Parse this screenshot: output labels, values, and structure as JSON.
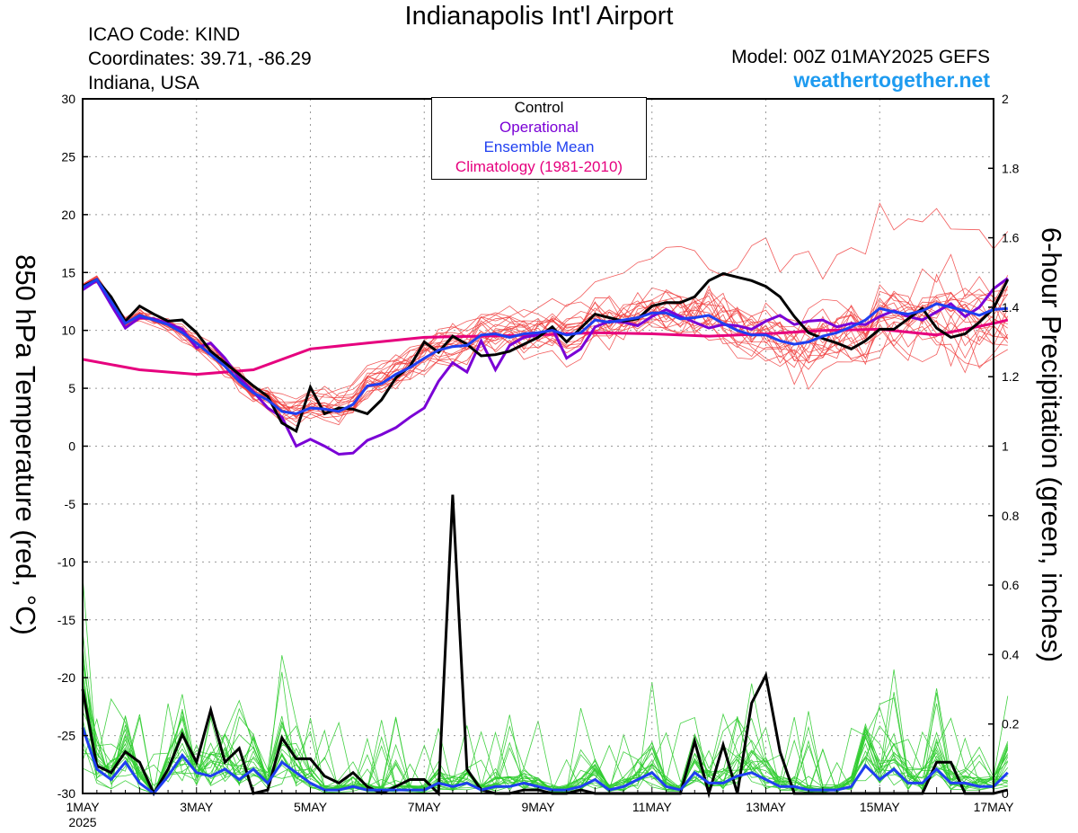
{
  "header": {
    "title": "Indianapolis Int'l Airport",
    "icao": "ICAO Code: KIND",
    "coords": "Coordinates: 39.71, -86.29",
    "region": "Indiana, USA",
    "model": "Model: 00Z 01MAY2025 GEFS",
    "site": "weathertogether.net"
  },
  "colors": {
    "control": "#000000",
    "operational": "#7a00d6",
    "mean": "#1f3ff0",
    "climatology": "#e6007e",
    "members_temp": "#f04040",
    "members_precip": "#2ecc2e",
    "site": "#1e9bf0"
  },
  "chart_data": {
    "type": "line",
    "ylabel_left": "850 hPa Temperature (red, °C)",
    "ylabel_right": "6-hour Precipitation (green, inches)",
    "ylim_left": [
      -30,
      30
    ],
    "ylim_right": [
      0,
      2
    ],
    "yticks_left": [
      -30,
      -25,
      -20,
      -15,
      -10,
      -5,
      0,
      5,
      10,
      15,
      20,
      25,
      30
    ],
    "yticks_right": [
      0,
      0.2,
      0.4,
      0.6,
      0.8,
      1,
      1.2,
      1.4,
      1.6,
      1.8,
      2
    ],
    "xlim_days": [
      0,
      16
    ],
    "xticks": [
      {
        "day": 0,
        "label": "1MAY",
        "sub": "2025"
      },
      {
        "day": 2,
        "label": "3MAY"
      },
      {
        "day": 4,
        "label": "5MAY"
      },
      {
        "day": 6,
        "label": "7MAY"
      },
      {
        "day": 8,
        "label": "9MAY"
      },
      {
        "day": 10,
        "label": "11MAY"
      },
      {
        "day": 12,
        "label": "13MAY"
      },
      {
        "day": 14,
        "label": "15MAY"
      },
      {
        "day": 16,
        "label": "17MAY"
      }
    ],
    "grid": true,
    "legend_position": "top-center",
    "legend": [
      {
        "name": "Control",
        "color": "#000000"
      },
      {
        "name": "Operational",
        "color": "#7a00d6"
      },
      {
        "name": "Ensemble Mean",
        "color": "#1f3ff0"
      },
      {
        "name": "Climatology (1981-2010)",
        "color": "#e6007e"
      }
    ],
    "temperature": {
      "control": [
        [
          0,
          13.8
        ],
        [
          0.25,
          14.4
        ],
        [
          0.5,
          12.9
        ],
        [
          0.75,
          10.8
        ],
        [
          1,
          12.1
        ],
        [
          1.25,
          11.4
        ],
        [
          1.5,
          10.8
        ],
        [
          1.75,
          10.9
        ],
        [
          2,
          9.8
        ],
        [
          2.25,
          8.2
        ],
        [
          2.5,
          7.2
        ],
        [
          2.75,
          6.2
        ],
        [
          3,
          5.2
        ],
        [
          3.25,
          4.3
        ],
        [
          3.5,
          2.0
        ],
        [
          3.75,
          1.3
        ],
        [
          4,
          5.1
        ],
        [
          4.25,
          2.8
        ],
        [
          4.5,
          3.3
        ],
        [
          4.75,
          3.2
        ],
        [
          5,
          2.8
        ],
        [
          5.25,
          4.0
        ],
        [
          5.5,
          5.9
        ],
        [
          5.75,
          6.9
        ],
        [
          6,
          9.0
        ],
        [
          6.25,
          8.1
        ],
        [
          6.5,
          9.5
        ],
        [
          6.75,
          8.8
        ],
        [
          7,
          7.8
        ],
        [
          7.25,
          7.9
        ],
        [
          7.5,
          8.2
        ],
        [
          7.75,
          8.8
        ],
        [
          8,
          9.4
        ],
        [
          8.25,
          10.3
        ],
        [
          8.5,
          9.0
        ],
        [
          8.75,
          10.2
        ],
        [
          9,
          11.4
        ],
        [
          9.25,
          11.1
        ],
        [
          9.5,
          10.8
        ],
        [
          9.75,
          11.0
        ],
        [
          10,
          12.1
        ],
        [
          10.25,
          12.4
        ],
        [
          10.5,
          12.4
        ],
        [
          10.75,
          12.9
        ],
        [
          11,
          14.3
        ],
        [
          11.25,
          14.9
        ],
        [
          11.5,
          14.6
        ],
        [
          11.75,
          14.3
        ],
        [
          12,
          13.8
        ],
        [
          12.25,
          12.9
        ],
        [
          12.5,
          11.2
        ],
        [
          12.75,
          9.8
        ],
        [
          13,
          9.3
        ],
        [
          13.25,
          8.9
        ],
        [
          13.5,
          8.4
        ],
        [
          13.75,
          9.1
        ],
        [
          14,
          10.1
        ],
        [
          14.25,
          10.1
        ],
        [
          14.5,
          11.0
        ],
        [
          14.75,
          11.9
        ],
        [
          15,
          10.2
        ],
        [
          15.25,
          9.4
        ],
        [
          15.5,
          9.7
        ],
        [
          15.75,
          10.7
        ],
        [
          16,
          11.9
        ],
        [
          16.25,
          14.4
        ]
      ],
      "operational": [
        [
          0,
          13.5
        ],
        [
          0.25,
          14.3
        ],
        [
          0.5,
          12.2
        ],
        [
          0.75,
          10.2
        ],
        [
          1,
          11.1
        ],
        [
          1.25,
          11.0
        ],
        [
          1.5,
          10.6
        ],
        [
          1.75,
          10.1
        ],
        [
          2,
          8.5
        ],
        [
          2.25,
          8.9
        ],
        [
          2.5,
          7.6
        ],
        [
          2.75,
          5.9
        ],
        [
          3,
          4.7
        ],
        [
          3.25,
          3.3
        ],
        [
          3.5,
          2.5
        ],
        [
          3.75,
          0.0
        ],
        [
          4,
          0.6
        ],
        [
          4.25,
          0.0
        ],
        [
          4.5,
          -0.7
        ],
        [
          4.75,
          -0.6
        ],
        [
          5,
          0.5
        ],
        [
          5.25,
          1.0
        ],
        [
          5.5,
          1.6
        ],
        [
          5.75,
          2.5
        ],
        [
          6,
          3.3
        ],
        [
          6.25,
          5.6
        ],
        [
          6.5,
          7.2
        ],
        [
          6.75,
          6.4
        ],
        [
          7,
          9.1
        ],
        [
          7.25,
          6.6
        ],
        [
          7.5,
          8.7
        ],
        [
          7.75,
          9.4
        ],
        [
          8,
          9.6
        ],
        [
          8.25,
          10.2
        ],
        [
          8.5,
          7.6
        ],
        [
          8.75,
          8.4
        ],
        [
          9,
          10.3
        ],
        [
          9.25,
          10.8
        ],
        [
          9.5,
          10.7
        ],
        [
          9.75,
          10.4
        ],
        [
          10,
          11.2
        ],
        [
          10.25,
          11.8
        ],
        [
          10.5,
          11.2
        ],
        [
          10.75,
          10.7
        ],
        [
          11,
          10.2
        ],
        [
          11.25,
          10.5
        ],
        [
          11.5,
          10.4
        ],
        [
          11.75,
          10.1
        ],
        [
          12,
          10.8
        ],
        [
          12.25,
          11.3
        ],
        [
          12.5,
          10.5
        ],
        [
          12.75,
          10.8
        ],
        [
          13,
          10.9
        ],
        [
          13.25,
          10.3
        ],
        [
          13.5,
          10.6
        ],
        [
          13.75,
          10.5
        ],
        [
          14,
          11.2
        ],
        [
          14.25,
          11.7
        ],
        [
          14.5,
          11.2
        ],
        [
          14.75,
          10.9
        ],
        [
          15,
          11.6
        ],
        [
          15.25,
          12.3
        ],
        [
          15.5,
          11.2
        ],
        [
          15.75,
          12.0
        ],
        [
          16,
          13.6
        ],
        [
          16.25,
          14.5
        ]
      ],
      "mean": [
        [
          0,
          13.7
        ],
        [
          0.25,
          14.4
        ],
        [
          0.5,
          12.5
        ],
        [
          0.75,
          10.6
        ],
        [
          1,
          11.3
        ],
        [
          1.25,
          10.9
        ],
        [
          1.5,
          10.5
        ],
        [
          1.75,
          9.8
        ],
        [
          2,
          8.9
        ],
        [
          2.25,
          7.9
        ],
        [
          2.5,
          6.9
        ],
        [
          2.75,
          5.6
        ],
        [
          3,
          4.6
        ],
        [
          3.25,
          4.0
        ],
        [
          3.5,
          3.0
        ],
        [
          3.75,
          2.8
        ],
        [
          4,
          3.3
        ],
        [
          4.25,
          3.2
        ],
        [
          4.5,
          3.0
        ],
        [
          4.75,
          3.6
        ],
        [
          5,
          5.2
        ],
        [
          5.25,
          5.4
        ],
        [
          5.5,
          6.2
        ],
        [
          5.75,
          6.8
        ],
        [
          6,
          7.6
        ],
        [
          6.25,
          8.3
        ],
        [
          6.5,
          8.6
        ],
        [
          6.75,
          8.7
        ],
        [
          7,
          9.6
        ],
        [
          7.25,
          9.7
        ],
        [
          7.5,
          9.4
        ],
        [
          7.75,
          9.7
        ],
        [
          8,
          9.8
        ],
        [
          8.25,
          10.0
        ],
        [
          8.5,
          9.6
        ],
        [
          8.75,
          9.8
        ],
        [
          9,
          10.9
        ],
        [
          9.25,
          10.7
        ],
        [
          9.5,
          10.9
        ],
        [
          9.75,
          11.1
        ],
        [
          10,
          11.5
        ],
        [
          10.25,
          11.5
        ],
        [
          10.5,
          11.0
        ],
        [
          10.75,
          11.1
        ],
        [
          11,
          11.3
        ],
        [
          11.25,
          10.6
        ],
        [
          11.5,
          10.0
        ],
        [
          11.75,
          9.6
        ],
        [
          12,
          9.6
        ],
        [
          12.25,
          9.1
        ],
        [
          12.5,
          8.8
        ],
        [
          12.75,
          9.0
        ],
        [
          13,
          9.5
        ],
        [
          13.25,
          9.8
        ],
        [
          13.5,
          10.3
        ],
        [
          13.75,
          10.9
        ],
        [
          14,
          11.9
        ],
        [
          14.25,
          11.6
        ],
        [
          14.5,
          11.4
        ],
        [
          14.75,
          11.7
        ],
        [
          15,
          12.3
        ],
        [
          15.25,
          12.0
        ],
        [
          15.5,
          11.7
        ],
        [
          15.75,
          11.3
        ],
        [
          16,
          11.8
        ],
        [
          16.25,
          11.9
        ]
      ],
      "climatology": [
        [
          0,
          7.5
        ],
        [
          1,
          6.6
        ],
        [
          2,
          6.2
        ],
        [
          3,
          6.6
        ],
        [
          4,
          8.4
        ],
        [
          5,
          8.9
        ],
        [
          6,
          9.4
        ],
        [
          7,
          9.5
        ],
        [
          8,
          9.6
        ],
        [
          9,
          9.8
        ],
        [
          10,
          9.7
        ],
        [
          11,
          9.5
        ],
        [
          12,
          9.7
        ],
        [
          13,
          10.0
        ],
        [
          14,
          10.1
        ],
        [
          15,
          9.6
        ],
        [
          16,
          10.6
        ],
        [
          16.25,
          10.9
        ]
      ]
    },
    "precipitation": {
      "control": [
        [
          0,
          0.3
        ],
        [
          0.25,
          0.08
        ],
        [
          0.5,
          0.06
        ],
        [
          0.75,
          0.12
        ],
        [
          1,
          0.09
        ],
        [
          1.25,
          0.0
        ],
        [
          1.5,
          0.07
        ],
        [
          1.75,
          0.17
        ],
        [
          2,
          0.09
        ],
        [
          2.25,
          0.24
        ],
        [
          2.5,
          0.09
        ],
        [
          2.75,
          0.13
        ],
        [
          3,
          0.0
        ],
        [
          3.25,
          0.01
        ],
        [
          3.5,
          0.16
        ],
        [
          3.75,
          0.1
        ],
        [
          4,
          0.1
        ],
        [
          4.25,
          0.05
        ],
        [
          4.5,
          0.03
        ],
        [
          4.75,
          0.06
        ],
        [
          5,
          0.02
        ],
        [
          5.25,
          0.0
        ],
        [
          5.5,
          0.02
        ],
        [
          5.75,
          0.04
        ],
        [
          6,
          0.04
        ],
        [
          6.25,
          0.0
        ],
        [
          6.5,
          0.86
        ],
        [
          6.75,
          0.07
        ],
        [
          7,
          0.01
        ],
        [
          7.25,
          0.0
        ],
        [
          7.5,
          0.0
        ],
        [
          7.75,
          0.01
        ],
        [
          8,
          0.01
        ],
        [
          8.25,
          0.0
        ],
        [
          8.5,
          0.0
        ],
        [
          8.75,
          0.01
        ],
        [
          9,
          0.0
        ],
        [
          9.25,
          0.0
        ],
        [
          9.5,
          0.0
        ],
        [
          9.75,
          0.0
        ],
        [
          10,
          0.0
        ],
        [
          10.25,
          0.0
        ],
        [
          10.5,
          0.0
        ],
        [
          10.75,
          0.15
        ],
        [
          11,
          0.0
        ],
        [
          11.25,
          0.14
        ],
        [
          11.5,
          0.0
        ],
        [
          11.75,
          0.26
        ],
        [
          12,
          0.34
        ],
        [
          12.25,
          0.12
        ],
        [
          12.5,
          0.0
        ],
        [
          12.75,
          0.0
        ],
        [
          13,
          0.0
        ],
        [
          13.25,
          0.0
        ],
        [
          13.5,
          0.0
        ],
        [
          13.75,
          0.0
        ],
        [
          14,
          0.0
        ],
        [
          14.25,
          0.0
        ],
        [
          14.5,
          0.0
        ],
        [
          14.75,
          0.0
        ],
        [
          15,
          0.09
        ],
        [
          15.25,
          0.09
        ],
        [
          15.5,
          0.0
        ],
        [
          15.75,
          0.0
        ],
        [
          16,
          0.0
        ],
        [
          16.25,
          0.01
        ]
      ],
      "mean": [
        [
          0,
          0.19
        ],
        [
          0.25,
          0.07
        ],
        [
          0.5,
          0.04
        ],
        [
          0.75,
          0.09
        ],
        [
          1,
          0.03
        ],
        [
          1.25,
          0.0
        ],
        [
          1.5,
          0.05
        ],
        [
          1.75,
          0.11
        ],
        [
          2,
          0.06
        ],
        [
          2.25,
          0.05
        ],
        [
          2.5,
          0.07
        ],
        [
          2.75,
          0.04
        ],
        [
          3,
          0.07
        ],
        [
          3.25,
          0.03
        ],
        [
          3.5,
          0.09
        ],
        [
          3.75,
          0.06
        ],
        [
          4,
          0.03
        ],
        [
          4.25,
          0.01
        ],
        [
          4.5,
          0.01
        ],
        [
          4.75,
          0.02
        ],
        [
          5,
          0.01
        ],
        [
          5.25,
          0.01
        ],
        [
          5.5,
          0.01
        ],
        [
          5.75,
          0.01
        ],
        [
          6,
          0.01
        ],
        [
          6.25,
          0.03
        ],
        [
          6.5,
          0.02
        ],
        [
          6.75,
          0.03
        ],
        [
          7,
          0.01
        ],
        [
          7.25,
          0.02
        ],
        [
          7.5,
          0.02
        ],
        [
          7.75,
          0.03
        ],
        [
          8,
          0.02
        ],
        [
          8.25,
          0.01
        ],
        [
          8.5,
          0.01
        ],
        [
          8.75,
          0.02
        ],
        [
          9,
          0.04
        ],
        [
          9.25,
          0.01
        ],
        [
          9.5,
          0.02
        ],
        [
          9.75,
          0.04
        ],
        [
          10,
          0.06
        ],
        [
          10.25,
          0.02
        ],
        [
          10.5,
          0.01
        ],
        [
          10.75,
          0.06
        ],
        [
          11,
          0.03
        ],
        [
          11.25,
          0.03
        ],
        [
          11.5,
          0.05
        ],
        [
          11.75,
          0.06
        ],
        [
          12,
          0.04
        ],
        [
          12.25,
          0.02
        ],
        [
          12.5,
          0.02
        ],
        [
          12.75,
          0.01
        ],
        [
          13,
          0.01
        ],
        [
          13.25,
          0.01
        ],
        [
          13.5,
          0.02
        ],
        [
          13.75,
          0.08
        ],
        [
          14,
          0.04
        ],
        [
          14.25,
          0.07
        ],
        [
          14.5,
          0.03
        ],
        [
          14.75,
          0.03
        ],
        [
          15,
          0.07
        ],
        [
          15.25,
          0.03
        ],
        [
          15.5,
          0.03
        ],
        [
          15.75,
          0.02
        ],
        [
          16,
          0.02
        ],
        [
          16.25,
          0.06
        ]
      ]
    }
  }
}
